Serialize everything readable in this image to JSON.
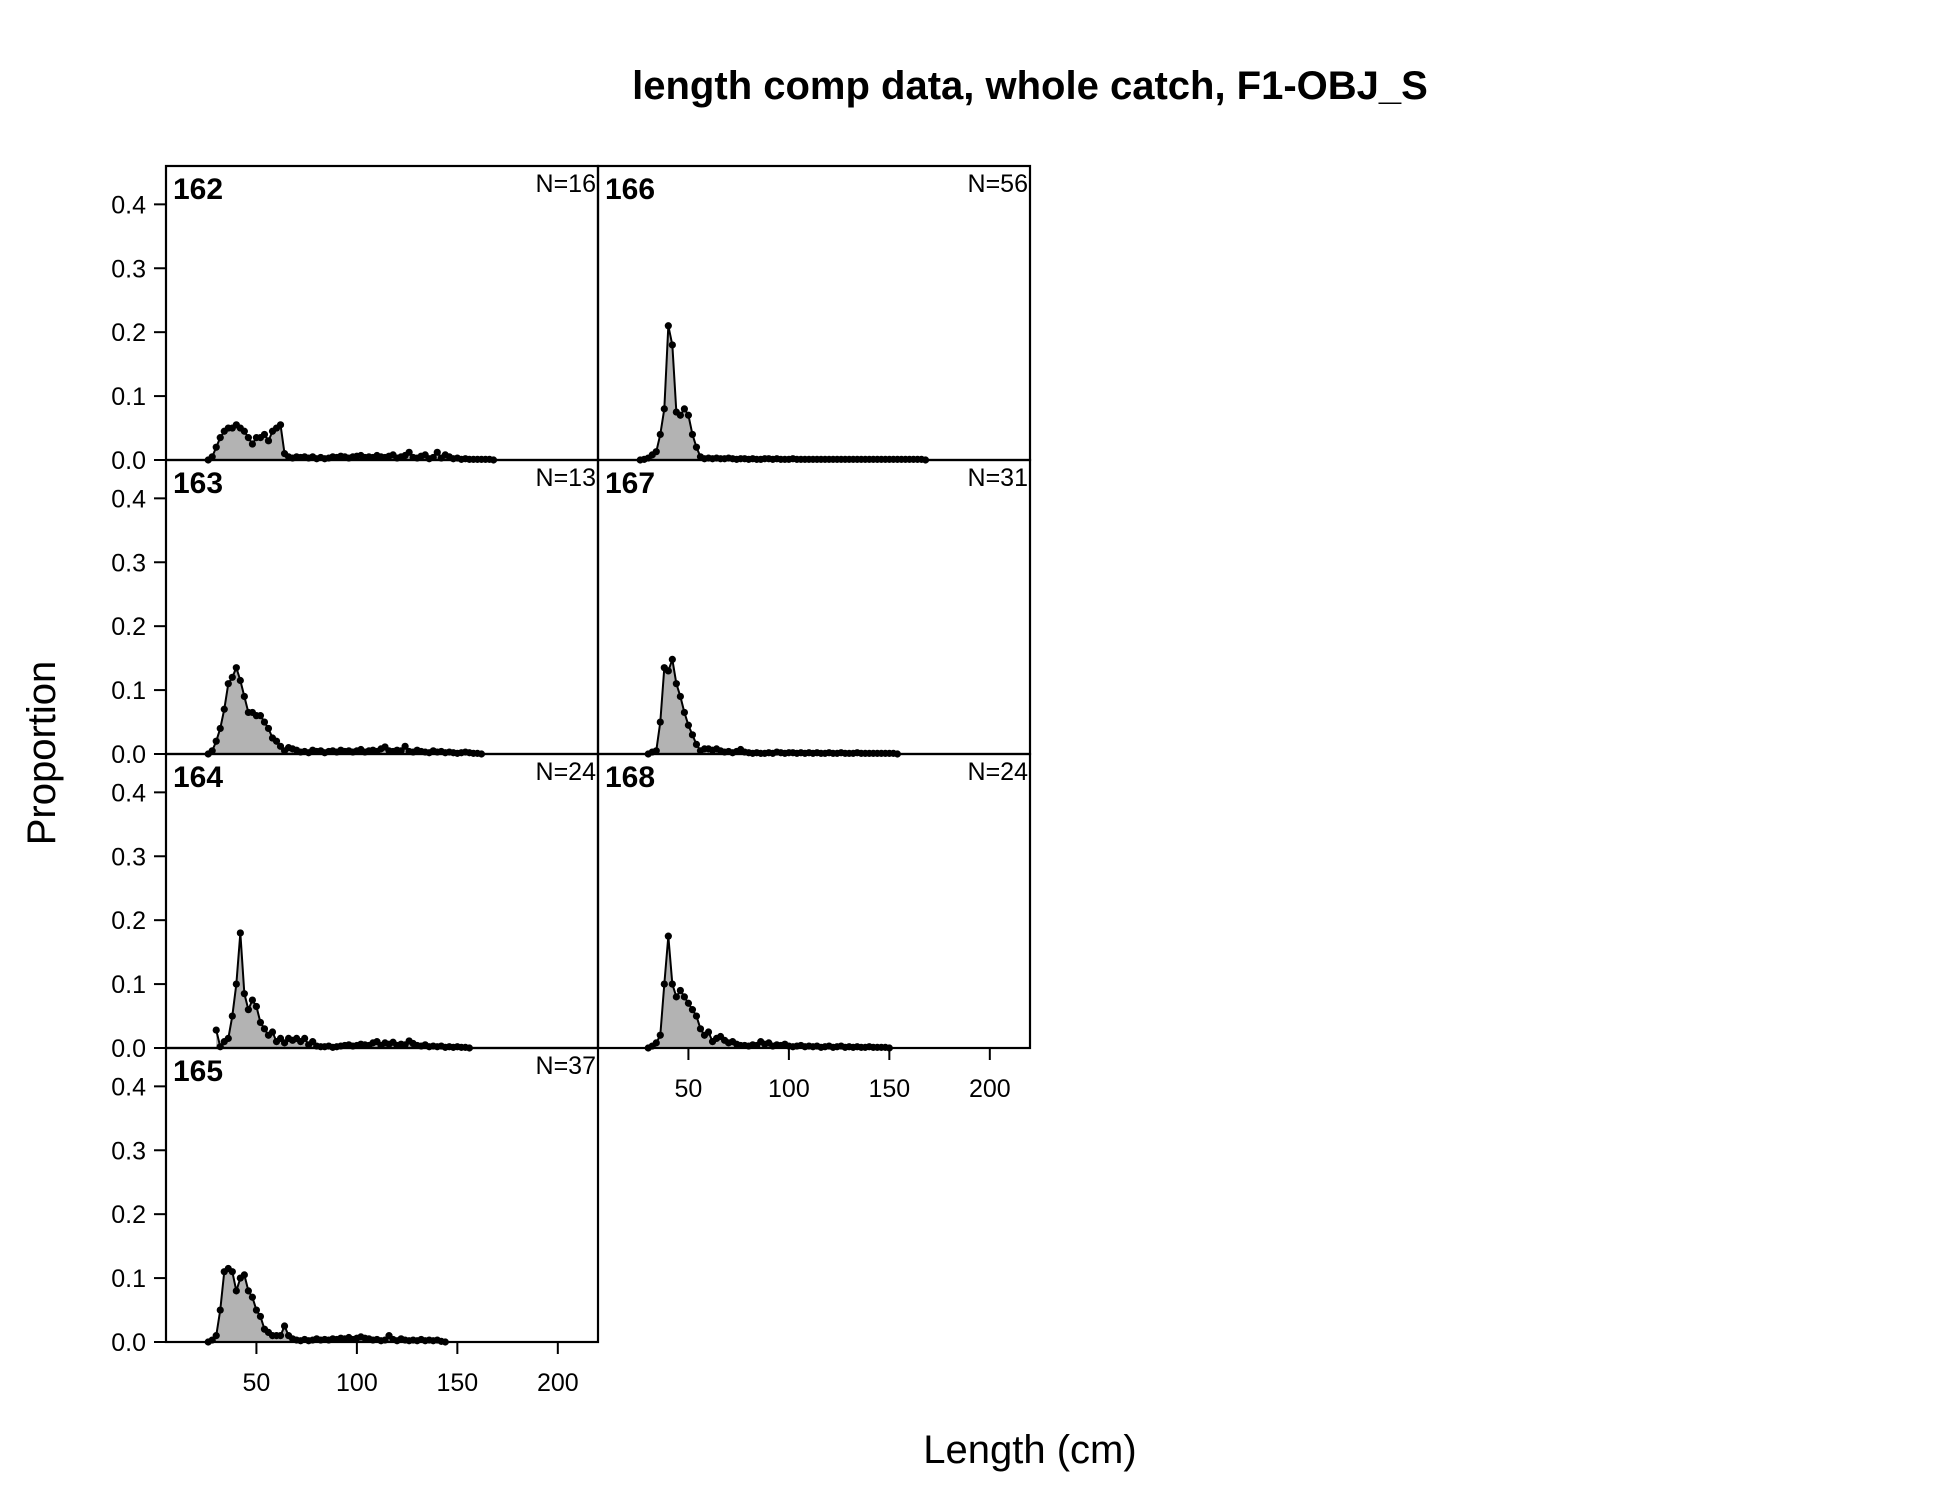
{
  "chart_data": {
    "type": "area",
    "title": "length comp data, whole catch, F1-OBJ_S",
    "xlabel": "Length (cm)",
    "ylabel": "Proportion",
    "xlim": [
      5,
      220
    ],
    "ylim": [
      0,
      0.46
    ],
    "x_ticks": [
      50,
      100,
      150,
      200
    ],
    "y_ticks": [
      "0.0",
      "0.1",
      "0.2",
      "0.3",
      "0.4"
    ],
    "grid": false,
    "panels": [
      {
        "id": "162",
        "n": "N=16",
        "x": [
          26,
          28,
          30,
          32,
          34,
          36,
          38,
          40,
          42,
          44,
          46,
          48,
          50,
          52,
          54,
          56,
          58,
          60,
          62,
          64,
          66,
          68,
          70,
          72,
          74,
          76,
          78,
          80,
          82,
          84,
          86,
          88,
          90,
          92,
          94,
          96,
          98,
          100,
          102,
          104,
          106,
          108,
          110,
          112,
          114,
          116,
          118,
          120,
          122,
          124,
          126,
          128,
          130,
          132,
          134,
          136,
          138,
          140,
          142,
          144,
          146,
          148,
          150,
          152,
          154,
          156,
          158,
          160,
          162,
          164,
          166,
          168
        ],
        "y": [
          0,
          0.005,
          0.02,
          0.035,
          0.045,
          0.05,
          0.05,
          0.055,
          0.05,
          0.045,
          0.035,
          0.025,
          0.035,
          0.035,
          0.04,
          0.03,
          0.045,
          0.05,
          0.055,
          0.01,
          0.005,
          0.003,
          0.005,
          0.004,
          0.005,
          0.003,
          0.005,
          0.002,
          0.004,
          0.002,
          0.003,
          0.005,
          0.004,
          0.006,
          0.005,
          0.003,
          0.005,
          0.006,
          0.007,
          0.004,
          0.005,
          0.004,
          0.007,
          0.005,
          0.004,
          0.006,
          0.008,
          0.003,
          0.005,
          0.007,
          0.012,
          0.004,
          0.003,
          0.006,
          0.008,
          0.002,
          0.004,
          0.012,
          0.003,
          0.008,
          0.005,
          0.002,
          0.003,
          0.001,
          0.002,
          0.001,
          0.001,
          0.001,
          0.001,
          0.001,
          0.001,
          0
        ]
      },
      {
        "id": "163",
        "n": "N=13",
        "x": [
          26,
          28,
          30,
          32,
          34,
          36,
          38,
          40,
          42,
          44,
          46,
          48,
          50,
          52,
          54,
          56,
          58,
          60,
          62,
          64,
          66,
          68,
          70,
          72,
          74,
          76,
          78,
          80,
          82,
          84,
          86,
          88,
          90,
          92,
          94,
          96,
          98,
          100,
          102,
          104,
          106,
          108,
          110,
          112,
          114,
          116,
          118,
          120,
          122,
          124,
          126,
          128,
          130,
          132,
          134,
          136,
          138,
          140,
          142,
          144,
          146,
          148,
          150,
          152,
          154,
          156,
          158,
          160,
          162
        ],
        "y": [
          0,
          0.005,
          0.02,
          0.04,
          0.07,
          0.11,
          0.12,
          0.135,
          0.115,
          0.09,
          0.065,
          0.065,
          0.06,
          0.06,
          0.05,
          0.04,
          0.025,
          0.02,
          0.012,
          0.005,
          0.01,
          0.008,
          0.006,
          0.003,
          0.004,
          0.002,
          0.006,
          0.004,
          0.005,
          0.002,
          0.004,
          0.005,
          0.003,
          0.006,
          0.004,
          0.005,
          0.003,
          0.005,
          0.007,
          0.003,
          0.005,
          0.006,
          0.004,
          0.008,
          0.011,
          0.005,
          0.004,
          0.006,
          0.005,
          0.012,
          0.004,
          0.003,
          0.006,
          0.004,
          0.003,
          0.002,
          0.005,
          0.003,
          0.004,
          0.002,
          0.003,
          0.002,
          0.001,
          0.002,
          0.003,
          0.002,
          0.001,
          0.001,
          0
        ]
      },
      {
        "id": "164",
        "n": "N=24",
        "x": [
          30,
          32,
          34,
          36,
          38,
          40,
          42,
          44,
          46,
          48,
          50,
          52,
          54,
          56,
          58,
          60,
          62,
          64,
          66,
          68,
          70,
          72,
          74,
          76,
          78,
          80,
          82,
          84,
          86,
          88,
          90,
          92,
          94,
          96,
          98,
          100,
          102,
          104,
          106,
          108,
          110,
          112,
          114,
          116,
          118,
          120,
          122,
          124,
          126,
          128,
          130,
          132,
          134,
          136,
          138,
          140,
          142,
          144,
          146,
          148,
          150,
          152,
          154,
          156
        ],
        "y": [
          0.028,
          0.002,
          0.01,
          0.015,
          0.05,
          0.1,
          0.18,
          0.085,
          0.06,
          0.075,
          0.065,
          0.04,
          0.03,
          0.02,
          0.025,
          0.01,
          0.015,
          0.008,
          0.015,
          0.012,
          0.015,
          0.01,
          0.015,
          0.005,
          0.01,
          0.003,
          0.002,
          0.002,
          0.003,
          0.001,
          0.002,
          0.003,
          0.004,
          0.005,
          0.003,
          0.004,
          0.006,
          0.005,
          0.004,
          0.008,
          0.01,
          0.004,
          0.008,
          0.006,
          0.009,
          0.004,
          0.006,
          0.005,
          0.011,
          0.007,
          0.004,
          0.003,
          0.005,
          0.002,
          0.003,
          0.002,
          0.003,
          0.001,
          0.002,
          0.001,
          0.002,
          0.001,
          0.001,
          0
        ]
      },
      {
        "id": "165",
        "n": "N=37",
        "x": [
          26,
          28,
          30,
          32,
          34,
          36,
          38,
          40,
          42,
          44,
          46,
          48,
          50,
          52,
          54,
          56,
          58,
          60,
          62,
          64,
          66,
          68,
          70,
          72,
          74,
          76,
          78,
          80,
          82,
          84,
          86,
          88,
          90,
          92,
          94,
          96,
          98,
          100,
          102,
          104,
          106,
          108,
          110,
          112,
          114,
          116,
          118,
          120,
          122,
          124,
          126,
          128,
          130,
          132,
          134,
          136,
          138,
          140,
          142,
          144
        ],
        "y": [
          0,
          0.003,
          0.01,
          0.05,
          0.11,
          0.115,
          0.11,
          0.08,
          0.1,
          0.105,
          0.08,
          0.07,
          0.05,
          0.04,
          0.02,
          0.015,
          0.01,
          0.01,
          0.01,
          0.025,
          0.01,
          0.005,
          0.003,
          0.002,
          0.004,
          0.002,
          0.003,
          0.005,
          0.003,
          0.004,
          0.003,
          0.005,
          0.004,
          0.006,
          0.005,
          0.007,
          0.004,
          0.006,
          0.008,
          0.006,
          0.005,
          0.003,
          0.004,
          0.002,
          0.003,
          0.01,
          0.004,
          0.002,
          0.005,
          0.003,
          0.002,
          0.003,
          0.002,
          0.004,
          0.002,
          0.003,
          0.002,
          0.003,
          0.001,
          0
        ]
      },
      {
        "id": "166",
        "n": "N=56",
        "x": [
          26,
          28,
          30,
          32,
          34,
          36,
          38,
          40,
          42,
          44,
          46,
          48,
          50,
          52,
          54,
          56,
          58,
          60,
          62,
          64,
          66,
          68,
          70,
          72,
          74,
          76,
          78,
          80,
          82,
          84,
          86,
          88,
          90,
          92,
          94,
          96,
          98,
          100,
          102,
          104,
          106,
          108,
          110,
          112,
          114,
          116,
          118,
          120,
          122,
          124,
          126,
          128,
          130,
          132,
          134,
          136,
          138,
          140,
          142,
          144,
          146,
          148,
          150,
          152,
          154,
          156,
          158,
          160,
          162,
          164,
          166,
          168
        ],
        "y": [
          0,
          0.001,
          0.003,
          0.008,
          0.013,
          0.04,
          0.08,
          0.21,
          0.18,
          0.075,
          0.07,
          0.08,
          0.07,
          0.04,
          0.02,
          0.005,
          0.002,
          0.003,
          0.002,
          0.003,
          0.002,
          0.002,
          0.003,
          0.002,
          0.001,
          0.002,
          0.002,
          0.001,
          0.002,
          0.001,
          0.001,
          0.002,
          0.002,
          0.001,
          0.002,
          0.001,
          0.001,
          0.001,
          0.002,
          0.001,
          0.001,
          0.001,
          0.001,
          0.001,
          0.001,
          0.001,
          0.001,
          0.001,
          0.001,
          0.001,
          0.001,
          0.001,
          0.001,
          0.001,
          0.001,
          0.001,
          0.001,
          0.001,
          0.001,
          0.001,
          0.001,
          0.001,
          0.001,
          0.001,
          0.001,
          0.001,
          0.001,
          0.001,
          0.001,
          0.001,
          0.001,
          0
        ]
      },
      {
        "id": "167",
        "n": "N=31",
        "x": [
          30,
          32,
          34,
          36,
          38,
          40,
          42,
          44,
          46,
          48,
          50,
          52,
          54,
          56,
          58,
          60,
          62,
          64,
          66,
          68,
          70,
          72,
          74,
          76,
          78,
          80,
          82,
          84,
          86,
          88,
          90,
          92,
          94,
          96,
          98,
          100,
          102,
          104,
          106,
          108,
          110,
          112,
          114,
          116,
          118,
          120,
          122,
          124,
          126,
          128,
          130,
          132,
          134,
          136,
          138,
          140,
          142,
          144,
          146,
          148,
          150,
          152,
          154
        ],
        "y": [
          0,
          0.003,
          0.005,
          0.05,
          0.135,
          0.13,
          0.148,
          0.11,
          0.09,
          0.065,
          0.045,
          0.03,
          0.015,
          0.005,
          0.008,
          0.008,
          0.006,
          0.008,
          0.005,
          0.003,
          0.004,
          0.002,
          0.004,
          0.007,
          0.003,
          0.002,
          0.001,
          0.002,
          0.001,
          0.001,
          0.002,
          0.001,
          0.003,
          0.002,
          0.001,
          0.002,
          0.002,
          0.001,
          0.002,
          0.001,
          0.002,
          0.001,
          0.002,
          0.001,
          0.001,
          0.002,
          0.001,
          0.001,
          0.002,
          0.001,
          0.001,
          0.001,
          0.002,
          0.001,
          0.001,
          0.001,
          0.001,
          0.001,
          0.001,
          0.001,
          0.001,
          0.001,
          0
        ]
      },
      {
        "id": "168",
        "n": "N=24",
        "x": [
          30,
          32,
          34,
          36,
          38,
          40,
          42,
          44,
          46,
          48,
          50,
          52,
          54,
          56,
          58,
          60,
          62,
          64,
          66,
          68,
          70,
          72,
          74,
          76,
          78,
          80,
          82,
          84,
          86,
          88,
          90,
          92,
          94,
          96,
          98,
          100,
          102,
          104,
          106,
          108,
          110,
          112,
          114,
          116,
          118,
          120,
          122,
          124,
          126,
          128,
          130,
          132,
          134,
          136,
          138,
          140,
          142,
          144,
          146,
          148,
          150
        ],
        "y": [
          0,
          0.003,
          0.008,
          0.02,
          0.1,
          0.175,
          0.1,
          0.08,
          0.09,
          0.08,
          0.07,
          0.06,
          0.05,
          0.03,
          0.02,
          0.025,
          0.01,
          0.015,
          0.018,
          0.012,
          0.008,
          0.01,
          0.006,
          0.004,
          0.004,
          0.003,
          0.005,
          0.004,
          0.01,
          0.006,
          0.008,
          0.003,
          0.005,
          0.004,
          0.006,
          0.003,
          0.002,
          0.003,
          0.004,
          0.002,
          0.003,
          0.002,
          0.003,
          0.001,
          0.002,
          0.003,
          0.001,
          0.002,
          0.003,
          0.001,
          0.002,
          0.001,
          0.002,
          0.001,
          0.001,
          0.002,
          0.001,
          0.001,
          0.001,
          0.001,
          0
        ]
      }
    ]
  }
}
